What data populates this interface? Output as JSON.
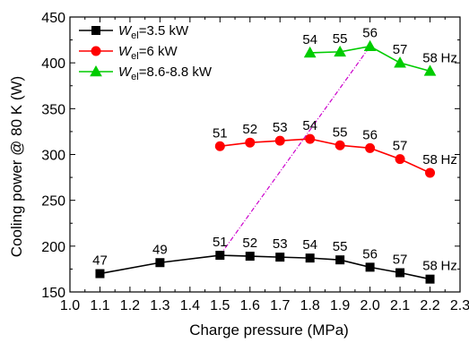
{
  "chart_data": {
    "type": "line",
    "xlabel": "Charge pressure (MPa)",
    "ylabel": "Cooling power @ 80 K (W)",
    "xlim": [
      1.0,
      2.3
    ],
    "ylim": [
      150,
      450
    ],
    "xticks": [
      "1.0",
      "1.1",
      "1.2",
      "1.3",
      "1.4",
      "1.5",
      "1.6",
      "1.7",
      "1.8",
      "1.9",
      "2.0",
      "2.1",
      "2.2",
      "2.3"
    ],
    "yticks": [
      "150",
      "200",
      "250",
      "300",
      "350",
      "400",
      "450"
    ],
    "grid": false,
    "legend": "top-left",
    "series": [
      {
        "name_prefix": "W",
        "name_sub": "el",
        "name_suffix": "=3.5 kW",
        "color": "#000000",
        "marker": "square",
        "x": [
          1.1,
          1.3,
          1.5,
          1.6,
          1.7,
          1.8,
          1.9,
          2.0,
          2.1,
          2.2
        ],
        "y": [
          170,
          182,
          190,
          189,
          188,
          187,
          185,
          177,
          171,
          164
        ],
        "labels": [
          "47",
          "49",
          "51",
          "52",
          "53",
          "54",
          "55",
          "56",
          "57",
          "58"
        ]
      },
      {
        "name_prefix": "W",
        "name_sub": "el",
        "name_suffix": "=6 kW",
        "color": "#ff0000",
        "marker": "circle",
        "x": [
          1.5,
          1.6,
          1.7,
          1.8,
          1.9,
          2.0,
          2.1,
          2.2
        ],
        "y": [
          309,
          313,
          315,
          317,
          310,
          307,
          295,
          280
        ],
        "labels": [
          "51",
          "52",
          "53",
          "54",
          "55",
          "56",
          "57",
          "58"
        ]
      },
      {
        "name_prefix": "W",
        "name_sub": "el",
        "name_suffix": "=8.6-8.8 kW",
        "color": "#00cc00",
        "marker": "triangle",
        "x": [
          1.8,
          1.9,
          2.0,
          2.1,
          2.2
        ],
        "y": [
          411,
          412,
          418,
          400,
          391
        ],
        "labels": [
          "54",
          "55",
          "56",
          "57",
          "58"
        ]
      }
    ],
    "annotations": {
      "unit_labels": [
        "Hz",
        "Hz",
        "Hz"
      ],
      "trend_line": {
        "color": "#cc00cc",
        "style": "dash-dot",
        "from": [
          1.5,
          190
        ],
        "to": [
          2.0,
          418
        ]
      }
    }
  }
}
